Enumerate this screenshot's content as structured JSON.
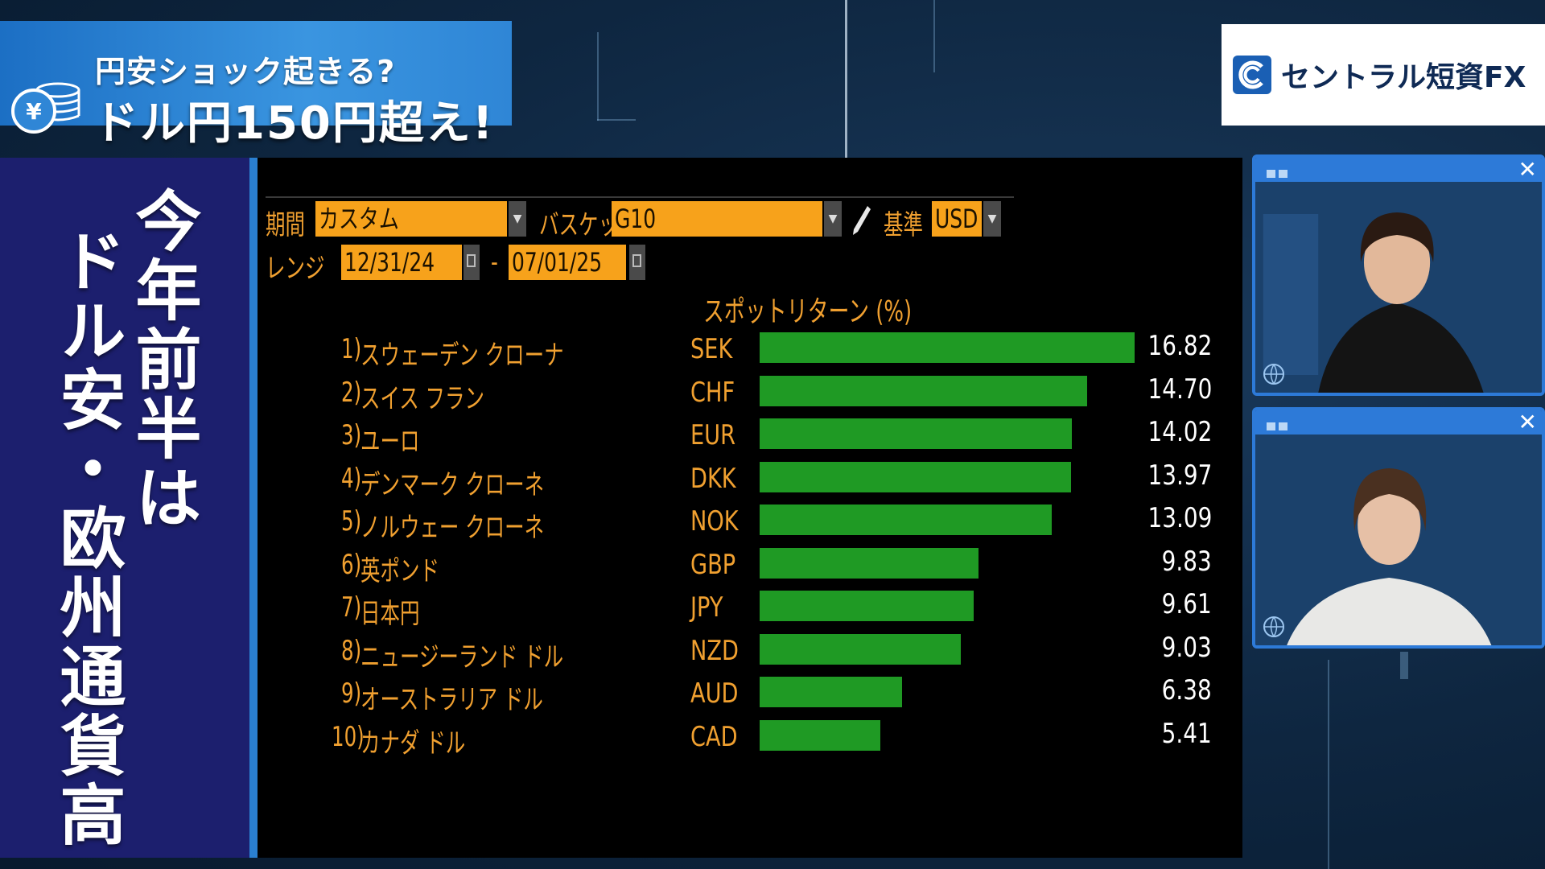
{
  "banner": {
    "subtitle": "円安ショック起きる?",
    "title": "ドル円150円超え!"
  },
  "logo": {
    "text": "セントラル短資FX"
  },
  "caption": {
    "line1": "今年前半は",
    "line2": "ドル安・欧州通貨高"
  },
  "terminal": {
    "period_label": "期間",
    "period_value": "カスタム",
    "basket_label": "バスケット",
    "basket_value": "G10",
    "base_label": "基準",
    "base_value": "USD",
    "range_label": "レンジ",
    "range_start": "12/31/24",
    "range_dash": "-",
    "range_end": "07/01/25"
  },
  "chart_data": {
    "type": "bar",
    "title": "スポットリターン (%)",
    "ylim": [
      0,
      16.82
    ],
    "rows": [
      {
        "rank": "1)",
        "name": "スウェーデン クローナ",
        "code": "SEK",
        "value": 16.82,
        "label": "16.82"
      },
      {
        "rank": "2)",
        "name": "スイス フラン",
        "code": "CHF",
        "value": 14.7,
        "label": "14.70"
      },
      {
        "rank": "3)",
        "name": "ユーロ",
        "code": "EUR",
        "value": 14.02,
        "label": "14.02"
      },
      {
        "rank": "4)",
        "name": "デンマーク クローネ",
        "code": "DKK",
        "value": 13.97,
        "label": "13.97"
      },
      {
        "rank": "5)",
        "name": "ノルウェー クローネ",
        "code": "NOK",
        "value": 13.09,
        "label": "13.09"
      },
      {
        "rank": "6)",
        "name": "英ポンド",
        "code": "GBP",
        "value": 9.83,
        "label": "9.83"
      },
      {
        "rank": "7)",
        "name": "日本円",
        "code": "JPY",
        "value": 9.61,
        "label": "9.61"
      },
      {
        "rank": "8)",
        "name": "ニュージーランド ドル",
        "code": "NZD",
        "value": 9.03,
        "label": "9.03"
      },
      {
        "rank": "9)",
        "name": "オーストラリア ドル",
        "code": "AUD",
        "value": 6.38,
        "label": "6.38"
      },
      {
        "rank": "10)",
        "name": "カナダ ドル",
        "code": "CAD",
        "value": 5.41,
        "label": "5.41"
      }
    ],
    "bar_color": "#1f9a24"
  },
  "videos": [
    {
      "close": "✕"
    },
    {
      "close": "✕"
    }
  ],
  "icons": {
    "coin": "yen-coin-stack-icon",
    "logo": "central-tanshi-logo-icon",
    "dropdown": "chevron-down-icon",
    "calendar": "calendar-icon",
    "pencil": "pencil-icon",
    "globe": "globe-icon",
    "close": "close-icon"
  }
}
